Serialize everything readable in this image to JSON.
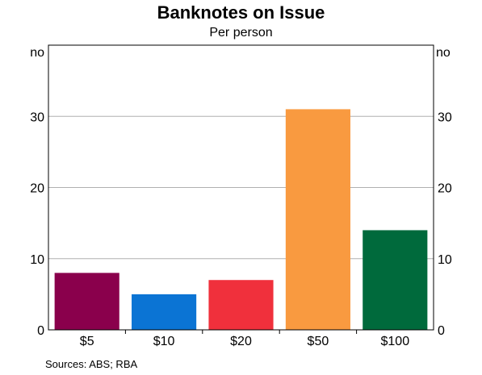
{
  "chart_data": {
    "type": "bar",
    "title": "Banknotes on Issue",
    "subtitle": "Per person",
    "categories": [
      "$5",
      "$10",
      "$20",
      "$50",
      "$100"
    ],
    "values": [
      8,
      5,
      7,
      31,
      14
    ],
    "bar_colors": [
      "#8a004c",
      "#0b74d4",
      "#f0303c",
      "#f99a40",
      "#006a3c"
    ],
    "ylim": [
      0,
      40
    ],
    "yticks": [
      "0",
      "10",
      "20",
      "30"
    ],
    "left_unit": "no",
    "right_unit": "no",
    "grid": true,
    "source": "Sources:   ABS; RBA"
  }
}
